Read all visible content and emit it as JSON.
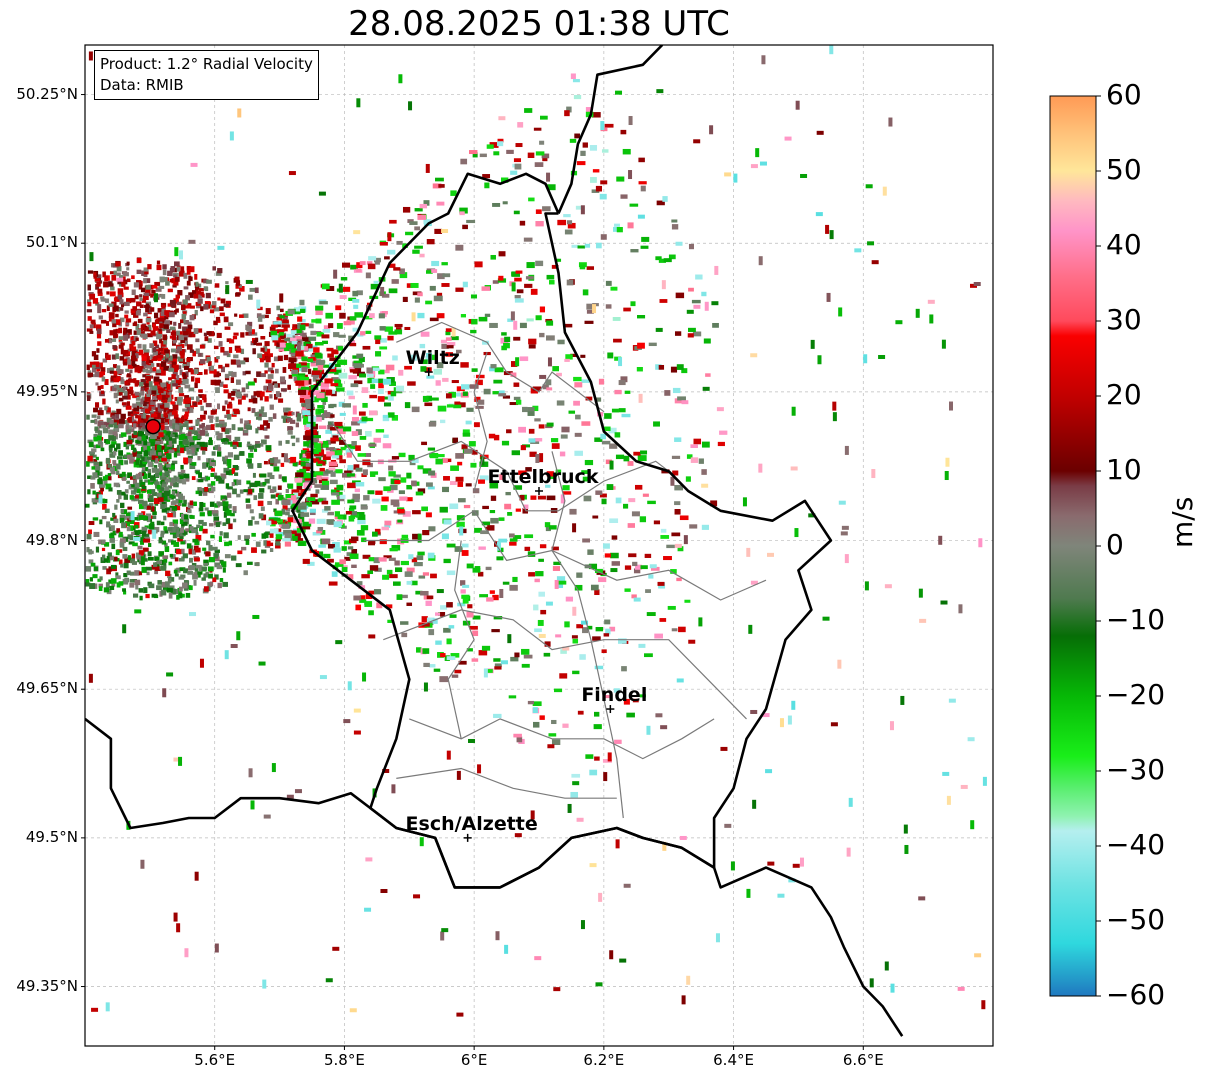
{
  "title": "28.08.2025 01:38 UTC",
  "info": {
    "product": "Product: 1.2° Radial Velocity",
    "data": "Data: RMIB"
  },
  "lat_labels": [
    "50.25°N",
    "50.1°N",
    "49.95°N",
    "49.8°N",
    "49.65°N",
    "49.5°N",
    "49.35°N"
  ],
  "lon_labels": [
    "5.6°E",
    "5.8°E",
    "6°E",
    "6.2°E",
    "6.4°E",
    "6.6°E"
  ],
  "cities": [
    {
      "name": "Wiltz",
      "lon": 5.93,
      "lat": 49.97
    },
    {
      "name": "Ettelbruck",
      "lon": 6.1,
      "lat": 49.85
    },
    {
      "name": "Findel",
      "lon": 6.21,
      "lat": 49.63
    },
    {
      "name": "Esch/Alzette",
      "lon": 5.99,
      "lat": 49.5
    }
  ],
  "radar": {
    "lon": 5.505,
    "lat": 49.915,
    "color": "#e8000b"
  },
  "colorbar": {
    "unit": "m/s",
    "min": -60,
    "max": 60,
    "tick_labels": [
      "60",
      "50",
      "40",
      "30",
      "20",
      "10",
      "0",
      "−10",
      "−20",
      "−30",
      "−40",
      "−50",
      "−60"
    ],
    "stops": [
      {
        "v": -60,
        "c": "#1f78c0"
      },
      {
        "v": -57,
        "c": "#25a3cc"
      },
      {
        "v": -53,
        "c": "#2fd8de"
      },
      {
        "v": -45,
        "c": "#6fe3e3"
      },
      {
        "v": -38,
        "c": "#b5efef"
      },
      {
        "v": -36,
        "c": "#8ff2b0"
      },
      {
        "v": -32,
        "c": "#55ee6a"
      },
      {
        "v": -28,
        "c": "#19ee19"
      },
      {
        "v": -20,
        "c": "#06b806"
      },
      {
        "v": -12,
        "c": "#066e06"
      },
      {
        "v": -7,
        "c": "#4f7a4f"
      },
      {
        "v": 0,
        "c": "#7f857a"
      },
      {
        "v": 4,
        "c": "#8a6b6e"
      },
      {
        "v": 8,
        "c": "#7a3c46"
      },
      {
        "v": 10,
        "c": "#6b0000"
      },
      {
        "v": 20,
        "c": "#c20000"
      },
      {
        "v": 28,
        "c": "#fa0000"
      },
      {
        "v": 30,
        "c": "#ff4a5c"
      },
      {
        "v": 36,
        "c": "#ff6f8a"
      },
      {
        "v": 42,
        "c": "#ff94c8"
      },
      {
        "v": 46,
        "c": "#ffb9c0"
      },
      {
        "v": 50,
        "c": "#ffe69a"
      },
      {
        "v": 55,
        "c": "#ffc27a"
      },
      {
        "v": 60,
        "c": "#ff9a55"
      }
    ]
  },
  "map_extent": {
    "lon_min": 5.4,
    "lon_max": 6.8,
    "lat_min": 49.29,
    "lat_max": 50.3
  },
  "border_outline": [
    [
      5.4,
      49.62
    ],
    [
      5.44,
      49.6
    ],
    [
      5.44,
      49.55
    ],
    [
      5.47,
      49.51
    ],
    [
      5.52,
      49.515
    ],
    [
      5.56,
      49.52
    ],
    [
      5.6,
      49.52
    ],
    [
      5.64,
      49.54
    ],
    [
      5.7,
      49.54
    ],
    [
      5.76,
      49.535
    ],
    [
      5.81,
      49.545
    ],
    [
      5.84,
      49.53
    ],
    [
      5.88,
      49.51
    ],
    [
      5.94,
      49.5
    ],
    [
      5.97,
      49.45
    ],
    [
      6.04,
      49.45
    ],
    [
      6.1,
      49.47
    ],
    [
      6.15,
      49.5
    ],
    [
      6.22,
      49.51
    ],
    [
      6.26,
      49.5
    ],
    [
      6.32,
      49.49
    ],
    [
      6.37,
      49.47
    ],
    [
      6.38,
      49.45
    ],
    [
      6.45,
      49.47
    ],
    [
      6.52,
      49.45
    ],
    [
      6.55,
      49.42
    ],
    [
      6.57,
      49.39
    ],
    [
      6.6,
      49.35
    ],
    [
      6.63,
      49.33
    ],
    [
      6.66,
      49.3
    ]
  ],
  "lux_outline": [
    [
      6.13,
      50.13
    ],
    [
      6.11,
      50.16
    ],
    [
      6.08,
      50.17
    ],
    [
      6.04,
      50.16
    ],
    [
      5.99,
      50.17
    ],
    [
      5.96,
      50.13
    ],
    [
      5.93,
      50.12
    ],
    [
      5.87,
      50.08
    ],
    [
      5.82,
      50.01
    ],
    [
      5.75,
      49.95
    ],
    [
      5.75,
      49.86
    ],
    [
      5.72,
      49.83
    ],
    [
      5.75,
      49.79
    ],
    [
      5.87,
      49.73
    ],
    [
      5.9,
      49.66
    ],
    [
      5.88,
      49.6
    ],
    [
      5.85,
      49.55
    ],
    [
      5.84,
      49.53
    ],
    [
      5.88,
      49.51
    ],
    [
      5.94,
      49.5
    ],
    [
      5.97,
      49.45
    ],
    [
      6.04,
      49.45
    ],
    [
      6.1,
      49.47
    ],
    [
      6.15,
      49.5
    ],
    [
      6.22,
      49.51
    ],
    [
      6.26,
      49.5
    ],
    [
      6.32,
      49.49
    ],
    [
      6.37,
      49.47
    ],
    [
      6.37,
      49.52
    ],
    [
      6.4,
      49.55
    ],
    [
      6.42,
      49.6
    ],
    [
      6.45,
      49.63
    ],
    [
      6.48,
      49.7
    ],
    [
      6.52,
      49.73
    ],
    [
      6.5,
      49.77
    ],
    [
      6.55,
      49.8
    ],
    [
      6.51,
      49.84
    ],
    [
      6.46,
      49.82
    ],
    [
      6.38,
      49.83
    ],
    [
      6.33,
      49.85
    ],
    [
      6.3,
      49.87
    ],
    [
      6.25,
      49.88
    ],
    [
      6.2,
      49.91
    ],
    [
      6.18,
      49.96
    ],
    [
      6.14,
      50.01
    ],
    [
      6.13,
      50.07
    ],
    [
      6.11,
      50.13
    ],
    [
      6.13,
      50.13
    ]
  ],
  "ger_border_north": [
    [
      6.13,
      50.13
    ],
    [
      6.15,
      50.16
    ],
    [
      6.16,
      50.2
    ],
    [
      6.18,
      50.23
    ],
    [
      6.19,
      50.27
    ],
    [
      6.26,
      50.28
    ],
    [
      6.29,
      50.3
    ]
  ],
  "cantons": [
    [
      [
        5.88,
        50.0
      ],
      [
        5.95,
        50.02
      ],
      [
        6.02,
        50.0
      ],
      [
        6.05,
        49.97
      ],
      [
        6.1,
        49.95
      ],
      [
        6.12,
        49.97
      ],
      [
        6.2,
        49.93
      ]
    ],
    [
      [
        5.78,
        49.92
      ],
      [
        5.82,
        49.88
      ],
      [
        5.9,
        49.88
      ],
      [
        5.98,
        49.9
      ],
      [
        6.05,
        49.87
      ],
      [
        6.08,
        49.83
      ],
      [
        6.13,
        49.83
      ],
      [
        6.2,
        49.86
      ],
      [
        6.28,
        49.88
      ],
      [
        6.3,
        49.87
      ]
    ],
    [
      [
        5.83,
        49.8
      ],
      [
        5.93,
        49.8
      ],
      [
        6.0,
        49.83
      ],
      [
        6.05,
        49.78
      ],
      [
        6.12,
        49.79
      ],
      [
        6.22,
        49.76
      ],
      [
        6.3,
        49.77
      ],
      [
        6.38,
        49.74
      ],
      [
        6.45,
        49.76
      ]
    ],
    [
      [
        5.86,
        49.7
      ],
      [
        5.98,
        49.73
      ],
      [
        6.06,
        49.72
      ],
      [
        6.12,
        49.69
      ],
      [
        6.2,
        49.7
      ],
      [
        6.3,
        49.7
      ],
      [
        6.36,
        49.66
      ],
      [
        6.42,
        49.62
      ]
    ],
    [
      [
        5.9,
        49.62
      ],
      [
        5.98,
        49.6
      ],
      [
        6.04,
        49.62
      ],
      [
        6.12,
        49.6
      ],
      [
        6.2,
        49.6
      ],
      [
        6.26,
        49.58
      ],
      [
        6.32,
        49.6
      ],
      [
        6.37,
        49.62
      ]
    ],
    [
      [
        5.88,
        49.56
      ],
      [
        5.98,
        49.57
      ],
      [
        6.06,
        49.55
      ],
      [
        6.14,
        49.54
      ],
      [
        6.22,
        49.54
      ]
    ],
    [
      [
        6.02,
        49.99
      ],
      [
        6.0,
        49.95
      ],
      [
        6.02,
        49.9
      ],
      [
        6.0,
        49.85
      ]
    ],
    [
      [
        6.12,
        49.89
      ],
      [
        6.14,
        49.84
      ],
      [
        6.12,
        49.79
      ],
      [
        6.16,
        49.75
      ],
      [
        6.18,
        49.7
      ],
      [
        6.2,
        49.64
      ],
      [
        6.22,
        49.58
      ],
      [
        6.23,
        49.52
      ]
    ],
    [
      [
        5.98,
        49.8
      ],
      [
        5.97,
        49.75
      ],
      [
        6.0,
        49.7
      ],
      [
        5.96,
        49.66
      ],
      [
        5.98,
        49.6
      ]
    ]
  ]
}
